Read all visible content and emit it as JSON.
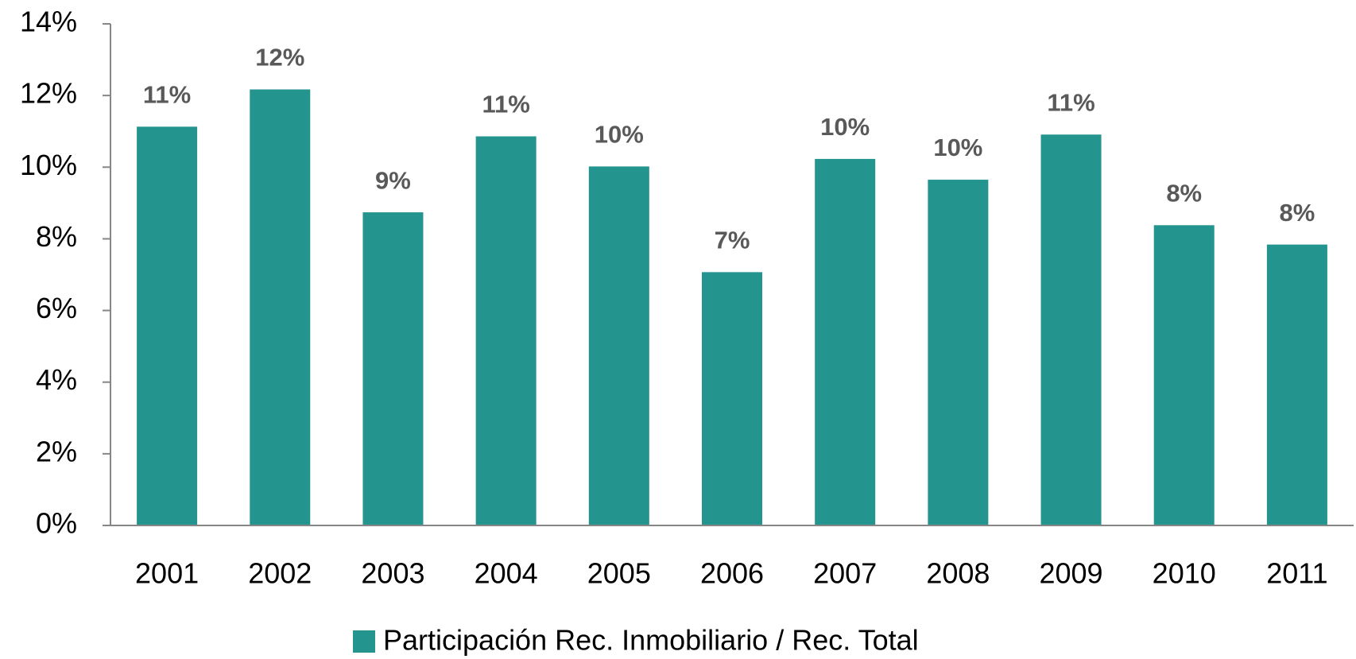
{
  "chart_data": {
    "type": "bar",
    "categories": [
      "2001",
      "2002",
      "2003",
      "2004",
      "2005",
      "2006",
      "2007",
      "2008",
      "2009",
      "2010",
      "2011"
    ],
    "series": [
      {
        "name": "Participación Rec. Inmobiliario / Rec. Total",
        "color": "#24948f",
        "values": [
          11.13,
          12.17,
          8.74,
          10.86,
          10.02,
          7.07,
          10.23,
          9.65,
          10.91,
          8.38,
          7.84
        ],
        "value_labels": [
          "11%",
          "12%",
          "9%",
          "11%",
          "10%",
          "7%",
          "10%",
          "10%",
          "11%",
          "8%",
          "8%"
        ]
      }
    ],
    "ylim": [
      0,
      14
    ],
    "yticks": [
      {
        "value": 0,
        "label": "0%"
      },
      {
        "value": 2,
        "label": "2%"
      },
      {
        "value": 4,
        "label": "4%"
      },
      {
        "value": 6,
        "label": "6%"
      },
      {
        "value": 8,
        "label": "8%"
      },
      {
        "value": 10,
        "label": "10%"
      },
      {
        "value": 12,
        "label": "12%"
      },
      {
        "value": 14,
        "label": "14%"
      }
    ],
    "grid": false,
    "legend": "bottom"
  }
}
